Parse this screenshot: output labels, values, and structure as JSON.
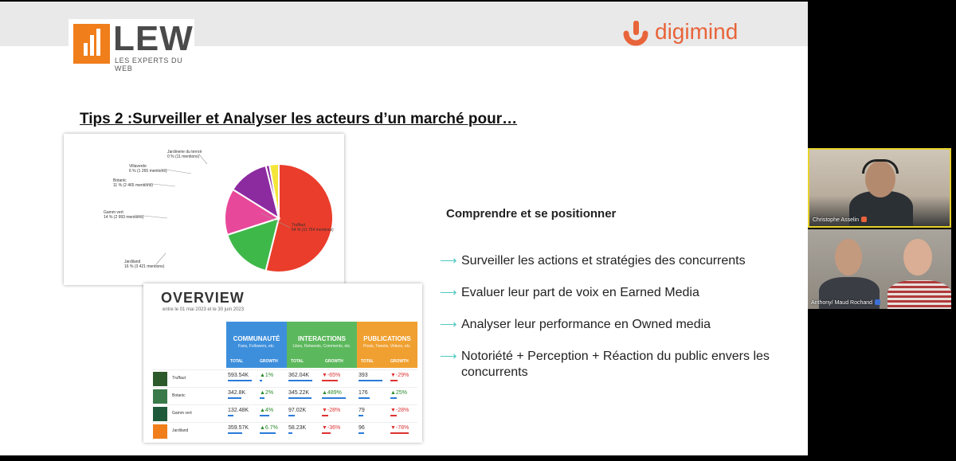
{
  "logos": {
    "lew_word": "LEW",
    "lew_subtitle": "LES EXPERTS DU WEB",
    "partner_word": "digimind",
    "partner_color": "#e8643a",
    "lew_color": "#f07e1b"
  },
  "slide": {
    "title": "Tips 2 :Surveiller et Analyser les acteurs d’un marché pour…",
    "subtitle": "Comprendre et se positionner",
    "bullet_icon": "arrow-right-icon",
    "bullets": [
      "Surveiller les actions et stratégies des concurrents",
      "Evaluer leur part de voix en Earned Media",
      "Analyser leur performance en Owned media",
      "Notoriété + Perception + Réaction du public envers les concurrents"
    ]
  },
  "chart_data": {
    "type": "pie",
    "slices": [
      {
        "label": "Truffaut",
        "line2": "54 % (11 764 mentions)",
        "percent": 54,
        "mentions": 11764,
        "color": "#ea3d2b"
      },
      {
        "label": "Jardiland",
        "line2": "16 % (3 421 mentions)",
        "percent": 16,
        "mentions": 3421,
        "color": "#3fb84a"
      },
      {
        "label": "Gamm vert",
        "line2": "14 % (2 993 mentions)",
        "percent": 14,
        "mentions": 2993,
        "color": "#e8489a"
      },
      {
        "label": "Botanic",
        "line2": "11 % (2 465 mentions)",
        "percent": 11,
        "mentions": 2465,
        "color": "#8c2aa0"
      },
      {
        "label": "Villaverde",
        "line2": "6 % (1 265 mentions)",
        "percent": 6,
        "mentions": 1265,
        "color": "#8c2aa0"
      },
      {
        "label": "Jardinerie du terroir",
        "line2": "0 % (11 mentions)",
        "percent": 0,
        "mentions": 11,
        "color": "#f4e53a"
      }
    ]
  },
  "overview": {
    "title": "OVERVIEW",
    "date_range": "entre le 01 mai 2023 et le 30 juin 2023",
    "groups": [
      {
        "title": "COMMUNAUTÉ",
        "subtitle": "Fans, Followers, etc.",
        "color": "#3d8fdc",
        "col1": "TOTAL",
        "col2": "GROWTH"
      },
      {
        "title": "INTERACTIONS",
        "subtitle": "Likes, Retweets, Comments, etc.",
        "color": "#5cb85c",
        "col1": "TOTAL",
        "col2": "GROWTH"
      },
      {
        "title": "PUBLICATIONS",
        "subtitle": "Posts, Tweets, Videos, etc.",
        "color": "#f0a030",
        "col1": "TOTAL",
        "col2": "GROWTH"
      }
    ],
    "rows": [
      {
        "name": "Truffaut",
        "logo_color": "#2d5a2a",
        "values": [
          "593.54K",
          "▲1%",
          "362.04K",
          "▼-65%",
          "393",
          "▼-29%"
        ],
        "signs": [
          "",
          "pos",
          "",
          "neg",
          "",
          "neg"
        ],
        "fill": [
          1.0,
          0.1,
          1.0,
          0.65,
          1.0,
          0.29
        ]
      },
      {
        "name": "Botanic",
        "logo_color": "#3a7a4a",
        "values": [
          "342.8K",
          "▲2%",
          "345.22K",
          "▲489%",
          "176",
          "▲25%"
        ],
        "signs": [
          "",
          "pos",
          "",
          "pos",
          "",
          "pos"
        ],
        "fill": [
          0.58,
          0.2,
          0.95,
          1.0,
          0.45,
          0.25
        ]
      },
      {
        "name": "Gamm vert",
        "logo_color": "#1f5a3a",
        "values": [
          "132.48K",
          "▲4%",
          "97.02K",
          "▼-28%",
          "79",
          "▼-28%"
        ],
        "signs": [
          "",
          "pos",
          "",
          "neg",
          "",
          "neg"
        ],
        "fill": [
          0.23,
          0.4,
          0.27,
          0.28,
          0.2,
          0.28
        ]
      },
      {
        "name": "Jardiland",
        "logo_color": "#f07e1b",
        "values": [
          "359.57K",
          "▲6.7%",
          "58.23K",
          "▼-36%",
          "96",
          "▼-78%"
        ],
        "signs": [
          "",
          "pos",
          "",
          "neg",
          "",
          "neg"
        ],
        "fill": [
          0.61,
          0.67,
          0.16,
          0.36,
          0.24,
          0.78
        ]
      }
    ]
  },
  "participants": [
    {
      "name": "Christophe Asselin",
      "badge_color": "#e8643a"
    },
    {
      "name": "Anthony/ Maud Rochand",
      "badge_color": "#3d6fd8"
    }
  ]
}
